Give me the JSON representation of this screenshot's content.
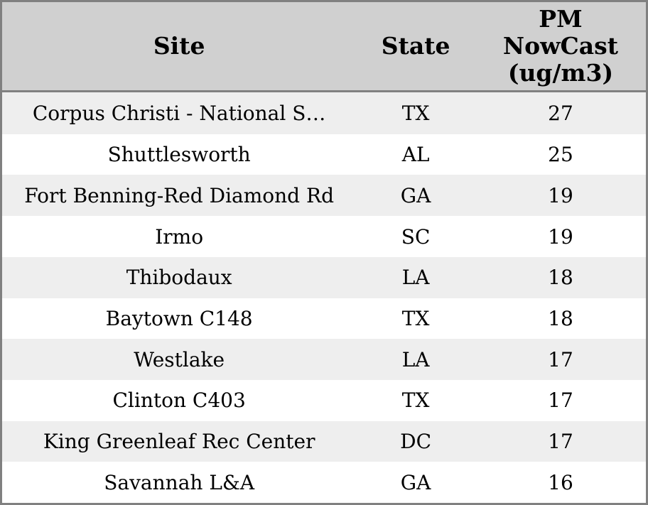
{
  "colors": {
    "header_bg": "#d0d0d0",
    "row_odd_bg": "#eeeeee",
    "row_even_bg": "#ffffff",
    "border": "#808080",
    "text": "#000000"
  },
  "table": {
    "headers": {
      "site": "Site",
      "state": "State",
      "value": "PM\nNowCast\n(ug/m3)"
    }
  },
  "chart_data": {
    "type": "table",
    "columns": [
      "Site",
      "State",
      "PM NowCast (ug/m3)"
    ],
    "rows": [
      {
        "site": "Corpus Christi - National S…",
        "state": "TX",
        "value": 27
      },
      {
        "site": "Shuttlesworth",
        "state": "AL",
        "value": 25
      },
      {
        "site": "Fort Benning-Red Diamond Rd",
        "state": "GA",
        "value": 19
      },
      {
        "site": "Irmo",
        "state": "SC",
        "value": 19
      },
      {
        "site": "Thibodaux",
        "state": "LA",
        "value": 18
      },
      {
        "site": "Baytown C148",
        "state": "TX",
        "value": 18
      },
      {
        "site": "Westlake",
        "state": "LA",
        "value": 17
      },
      {
        "site": "Clinton C403",
        "state": "TX",
        "value": 17
      },
      {
        "site": "King Greenleaf Rec Center",
        "state": "DC",
        "value": 17
      },
      {
        "site": "Savannah L&A",
        "state": "GA",
        "value": 16
      }
    ]
  }
}
